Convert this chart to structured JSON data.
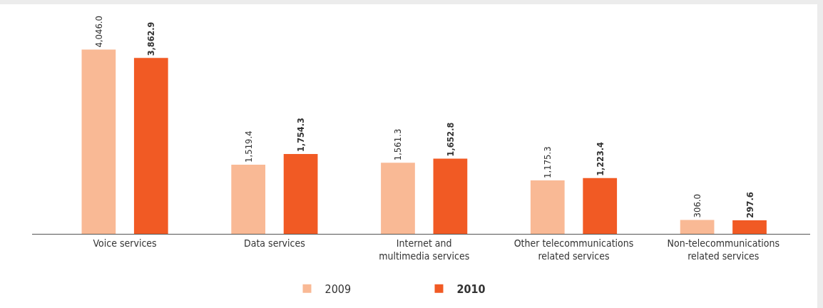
{
  "chart_data": {
    "type": "bar",
    "categories": [
      "Voice services",
      "Data services",
      "Internet and\nmultimedia services",
      "Other telecommunications\nrelated services",
      "Non-telecommunications\nrelated services"
    ],
    "series": [
      {
        "name": "2009",
        "color": "#f9b995",
        "values": [
          4046.0,
          1519.4,
          1561.3,
          1175.3,
          306.0
        ],
        "value_labels": [
          "4,046.0",
          "1,519.4",
          "1,561.3",
          "1,175.3",
          "306.0"
        ]
      },
      {
        "name": "2010",
        "color": "#f15a24",
        "values": [
          3862.9,
          1754.3,
          1652.8,
          1223.4,
          297.6
        ],
        "value_labels": [
          "3,862.9",
          "1,754.3",
          "1,652.8",
          "1,223.4",
          "297.6"
        ]
      }
    ],
    "legend": "bottom"
  }
}
